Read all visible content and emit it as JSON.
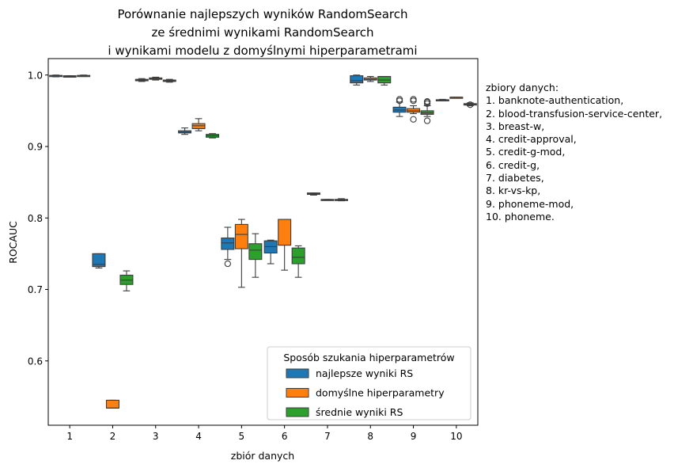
{
  "chart_data": {
    "type": "box",
    "title_lines": [
      "Porównanie najlepszych wyników RandomSearch",
      "ze średnimi wynikami RandomSearch",
      "i wynikami modelu z domyślnymi hiperparametrami"
    ],
    "xlabel": "zbiór danych",
    "ylabel": "ROCAUC",
    "categories": [
      "1",
      "2",
      "3",
      "4",
      "5",
      "6",
      "7",
      "8",
      "9",
      "10"
    ],
    "yticks": [
      "0.6",
      "0.7",
      "0.8",
      "0.9",
      "1.0"
    ],
    "ylim": [
      0.51,
      1.023
    ],
    "legend": {
      "title": "Sposób szukania hiperparametrów",
      "placement": "lower right"
    },
    "series": [
      {
        "name": "najlepsze wyniki RS",
        "color": "#1f77b4",
        "boxes": [
          {
            "category": "1",
            "whislo": 0.9975,
            "q1": 0.998,
            "med": 0.999,
            "q3": 0.9995,
            "whishi": 1.0,
            "fliers": []
          },
          {
            "category": "2",
            "whislo": 0.73,
            "q1": 0.732,
            "med": 0.735,
            "q3": 0.75,
            "whishi": 0.75,
            "fliers": []
          },
          {
            "category": "3",
            "whislo": 0.991,
            "q1": 0.992,
            "med": 0.993,
            "q3": 0.994,
            "whishi": 0.995,
            "fliers": []
          },
          {
            "category": "4",
            "whislo": 0.917,
            "q1": 0.919,
            "med": 0.92,
            "q3": 0.922,
            "whishi": 0.926,
            "fliers": []
          },
          {
            "category": "5",
            "whislo": 0.742,
            "q1": 0.756,
            "med": 0.765,
            "q3": 0.772,
            "whishi": 0.787,
            "fliers": [
              0.736
            ]
          },
          {
            "category": "6",
            "whislo": 0.736,
            "q1": 0.751,
            "med": 0.76,
            "q3": 0.768,
            "whishi": 0.769,
            "fliers": []
          },
          {
            "category": "7",
            "whislo": 0.832,
            "q1": 0.833,
            "med": 0.834,
            "q3": 0.835,
            "whishi": 0.835,
            "fliers": []
          },
          {
            "category": "8",
            "whislo": 0.986,
            "q1": 0.989,
            "med": 0.992,
            "q3": 0.999,
            "whishi": 1.0,
            "fliers": []
          },
          {
            "category": "9",
            "whislo": 0.942,
            "q1": 0.948,
            "med": 0.951,
            "q3": 0.955,
            "whishi": 0.962,
            "fliers": [
              0.964,
              0.966
            ]
          },
          {
            "category": "10",
            "whislo": 0.964,
            "q1": 0.9645,
            "med": 0.965,
            "q3": 0.9655,
            "whishi": 0.966,
            "fliers": []
          }
        ]
      },
      {
        "name": "domyślne hiperparametry",
        "color": "#ff7f0e",
        "boxes": [
          {
            "category": "1",
            "whislo": 0.997,
            "q1": 0.997,
            "med": 0.998,
            "q3": 0.999,
            "whishi": 0.999,
            "fliers": []
          },
          {
            "category": "2",
            "whislo": 0.534,
            "q1": 0.534,
            "med": 0.534,
            "q3": 0.545,
            "whishi": 0.545,
            "fliers": []
          },
          {
            "category": "3",
            "whislo": 0.993,
            "q1": 0.994,
            "med": 0.995,
            "q3": 0.996,
            "whishi": 0.997,
            "fliers": []
          },
          {
            "category": "4",
            "whislo": 0.922,
            "q1": 0.925,
            "med": 0.929,
            "q3": 0.932,
            "whishi": 0.939,
            "fliers": []
          },
          {
            "category": "5",
            "whislo": 0.703,
            "q1": 0.757,
            "med": 0.777,
            "q3": 0.791,
            "whishi": 0.798,
            "fliers": []
          },
          {
            "category": "6",
            "whislo": 0.727,
            "q1": 0.762,
            "med": 0.762,
            "q3": 0.798,
            "whishi": 0.798,
            "fliers": []
          },
          {
            "category": "7",
            "whislo": 0.825,
            "q1": 0.825,
            "med": 0.825,
            "q3": 0.826,
            "whishi": 0.826,
            "fliers": []
          },
          {
            "category": "8",
            "whislo": 0.991,
            "q1": 0.993,
            "med": 0.994,
            "q3": 0.996,
            "whishi": 0.998,
            "fliers": []
          },
          {
            "category": "9",
            "whislo": 0.946,
            "q1": 0.948,
            "med": 0.95,
            "q3": 0.953,
            "whishi": 0.957,
            "fliers": [
              0.938,
              0.964,
              0.966
            ]
          },
          {
            "category": "10",
            "whislo": 0.969,
            "q1": 0.969,
            "med": 0.969,
            "q3": 0.969,
            "whishi": 0.969,
            "fliers": []
          }
        ]
      },
      {
        "name": "średnie wyniki RS",
        "color": "#2ca02c",
        "boxes": [
          {
            "category": "1",
            "whislo": 0.998,
            "q1": 0.9985,
            "med": 0.999,
            "q3": 0.9995,
            "whishi": 1.0,
            "fliers": []
          },
          {
            "category": "2",
            "whislo": 0.698,
            "q1": 0.707,
            "med": 0.713,
            "q3": 0.72,
            "whishi": 0.726,
            "fliers": []
          },
          {
            "category": "3",
            "whislo": 0.99,
            "q1": 0.991,
            "med": 0.992,
            "q3": 0.993,
            "whishi": 0.994,
            "fliers": []
          },
          {
            "category": "4",
            "whislo": 0.912,
            "q1": 0.913,
            "med": 0.915,
            "q3": 0.917,
            "whishi": 0.918,
            "fliers": []
          },
          {
            "category": "5",
            "whislo": 0.717,
            "q1": 0.742,
            "med": 0.755,
            "q3": 0.764,
            "whishi": 0.778,
            "fliers": []
          },
          {
            "category": "6",
            "whislo": 0.717,
            "q1": 0.736,
            "med": 0.745,
            "q3": 0.758,
            "whishi": 0.761,
            "fliers": []
          },
          {
            "category": "7",
            "whislo": 0.824,
            "q1": 0.825,
            "med": 0.825,
            "q3": 0.826,
            "whishi": 0.827,
            "fliers": []
          },
          {
            "category": "8",
            "whislo": 0.986,
            "q1": 0.989,
            "med": 0.993,
            "q3": 0.998,
            "whishi": 0.998,
            "fliers": []
          },
          {
            "category": "9",
            "whislo": 0.942,
            "q1": 0.945,
            "med": 0.947,
            "q3": 0.95,
            "whishi": 0.957,
            "fliers": [
              0.936,
              0.96,
              0.962,
              0.963
            ]
          },
          {
            "category": "10",
            "whislo": 0.957,
            "q1": 0.958,
            "med": 0.959,
            "q3": 0.96,
            "whishi": 0.961,
            "fliers": [
              0.9585
            ]
          }
        ]
      }
    ]
  },
  "side_note": {
    "title": "zbiory danych:",
    "lines": [
      "1. banknote-authentication,",
      "2. blood-transfusion-service-center,",
      "3. breast-w,",
      "4. credit-approval,",
      "5. credit-g-mod,",
      "6. credit-g,",
      "7. diabetes,",
      "8. kr-vs-kp,",
      "9. phoneme-mod,",
      "10. phoneme."
    ]
  }
}
